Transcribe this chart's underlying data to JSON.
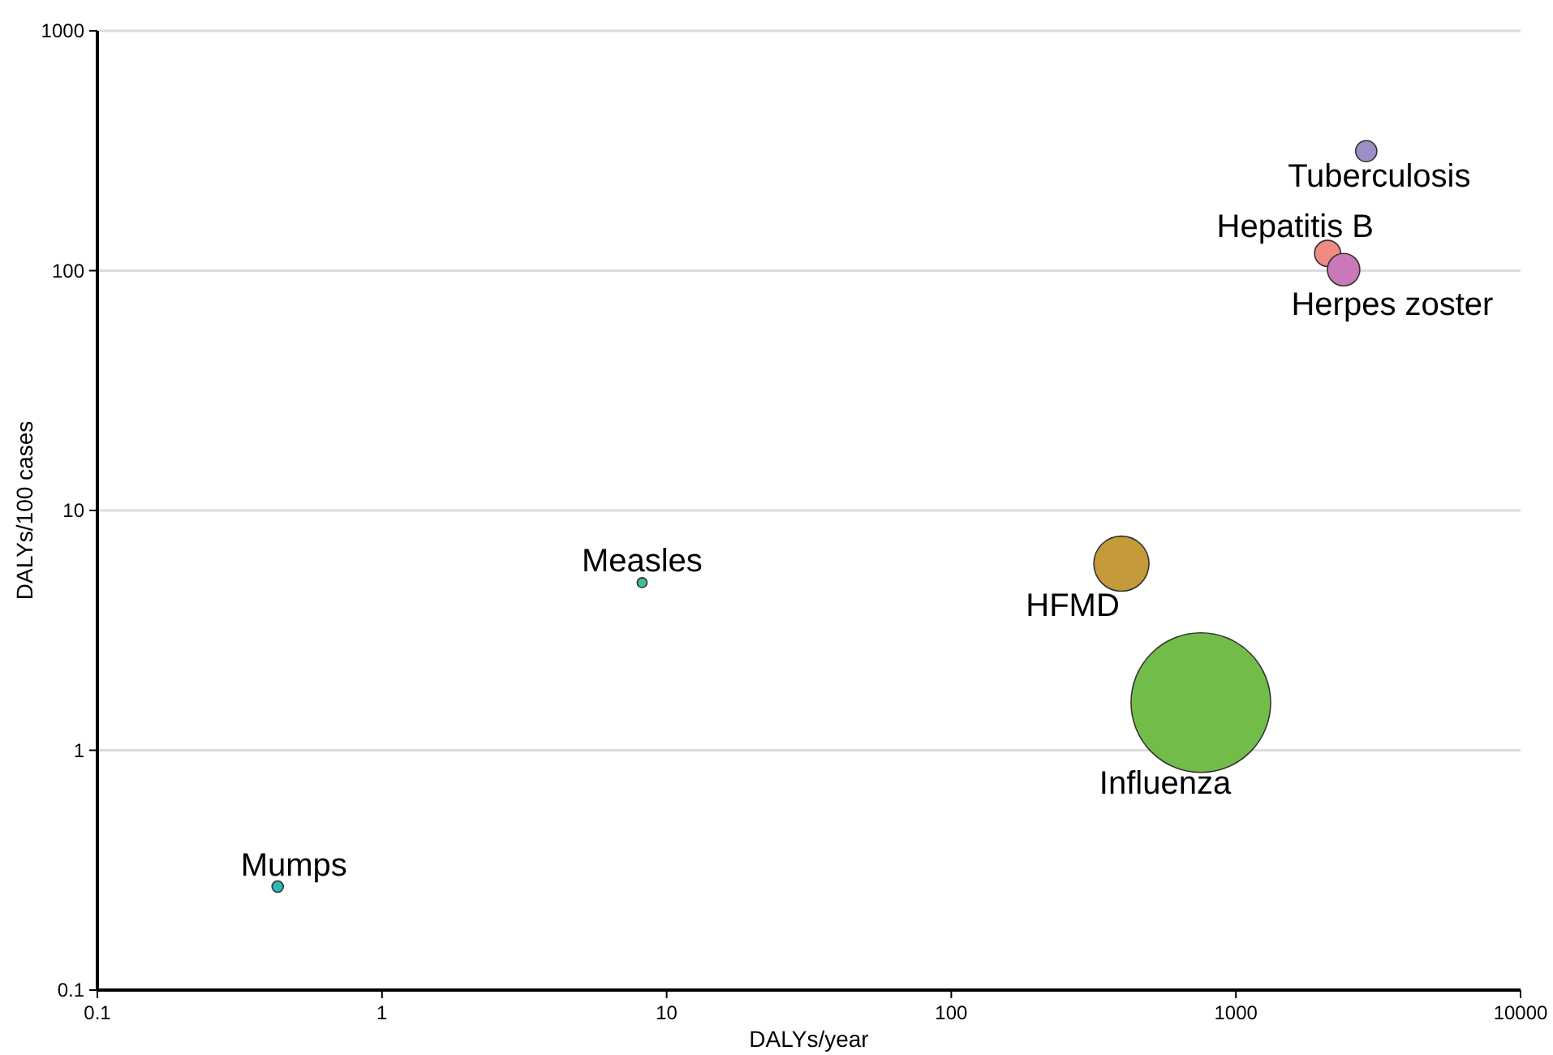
{
  "chart_data": {
    "type": "bubble",
    "xlabel": "DALYs/year",
    "ylabel": "DALYs/100 cases",
    "log": "xy",
    "grid": "y",
    "xlim": [
      0.1,
      10000
    ],
    "ylim": [
      0.1,
      1000
    ],
    "xticks": [
      0.1,
      1,
      10,
      100,
      1000,
      10000
    ],
    "yticks": [
      0.1,
      1,
      10,
      100,
      1000
    ],
    "series": [
      {
        "name": "Tuberculosis",
        "color": "#9b8fc6",
        "x": [
          2870
        ],
        "values": [
          315
        ],
        "sizes": [
          0.023
        ]
      },
      {
        "name": "Hepatitis B",
        "color": "#f08a84",
        "x": [
          2100
        ],
        "values": [
          118
        ],
        "sizes": [
          0.035
        ]
      },
      {
        "name": "Herpes zoster",
        "color": "#c978b8",
        "x": [
          2390
        ],
        "values": [
          101
        ],
        "sizes": [
          0.054
        ]
      },
      {
        "name": "HFMD",
        "color": "#c49a3a",
        "x": [
          396
        ],
        "values": [
          6.0
        ],
        "sizes": [
          0.156
        ]
      },
      {
        "name": "Influenza",
        "color": "#72bd4a",
        "x": [
          753
        ],
        "values": [
          1.58
        ],
        "sizes": [
          1
        ]
      },
      {
        "name": "Measles",
        "color": "#3dbf91",
        "x": [
          8.2
        ],
        "values": [
          5.0
        ],
        "sizes": [
          0.005
        ]
      },
      {
        "name": "Mumps",
        "color": "#2fb8b8",
        "x": [
          0.43
        ],
        "values": [
          0.27
        ],
        "sizes": [
          0.0066
        ]
      }
    ]
  }
}
